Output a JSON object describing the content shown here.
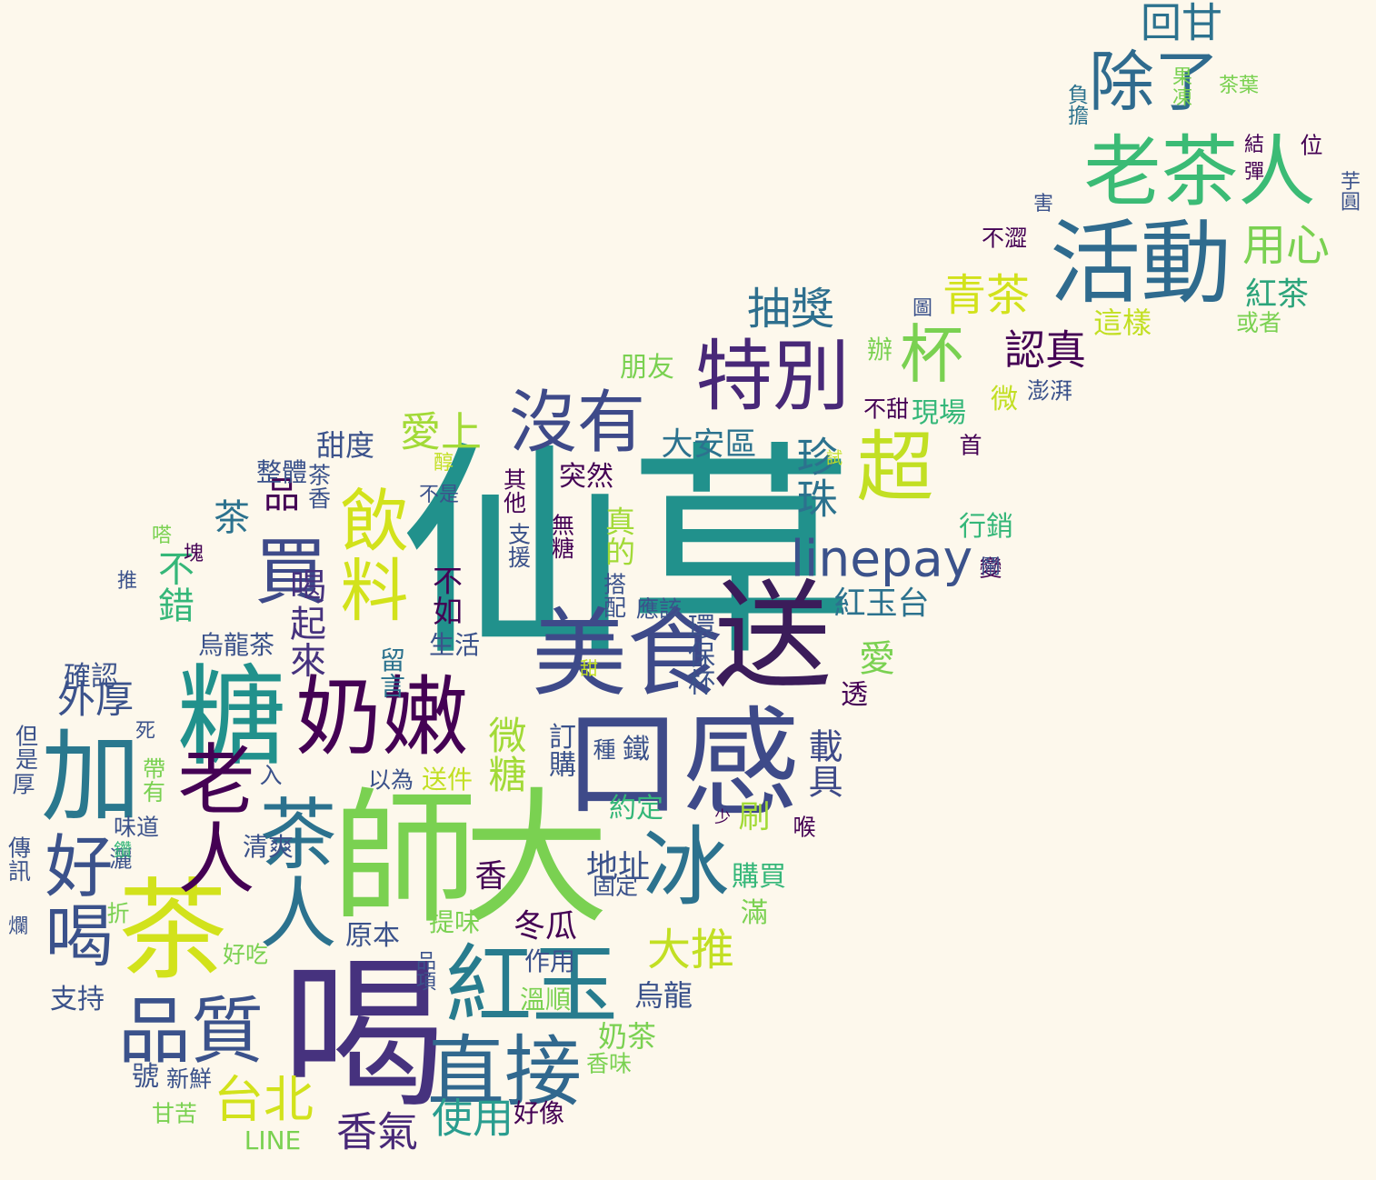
{
  "words": [
    {
      "text": "仙草",
      "color": "#21918c"
    },
    {
      "text": "喝",
      "color": "#46327e"
    },
    {
      "text": "大",
      "color": "#7ad151"
    },
    {
      "text": "師",
      "color": "#7ad151"
    },
    {
      "text": "送",
      "color": "#3b1c5a"
    },
    {
      "text": "口感",
      "color": "#3e4a89"
    },
    {
      "text": "美食",
      "color": "#3e4a89"
    },
    {
      "text": "糖",
      "color": "#21918c"
    },
    {
      "text": "奶嫩",
      "color": "#440154"
    },
    {
      "text": "加",
      "color": "#2a788e"
    },
    {
      "text": "茶",
      "color": "#d2e21b"
    },
    {
      "text": "好喝",
      "color": "#3b528b"
    },
    {
      "text": "老人",
      "color": "#440154"
    },
    {
      "text": "茶人",
      "color": "#2c728e"
    },
    {
      "text": "冰",
      "color": "#2c728e"
    },
    {
      "text": "紅玉",
      "color": "#287c8e"
    },
    {
      "text": "直接",
      "color": "#31688e"
    },
    {
      "text": "品質",
      "color": "#3b528b"
    },
    {
      "text": "特別",
      "color": "#482878"
    },
    {
      "text": "沒有",
      "color": "#3e4a89"
    },
    {
      "text": "超",
      "color": "#c2df23"
    },
    {
      "text": "杯",
      "color": "#7ad151"
    },
    {
      "text": "活動",
      "color": "#2f6b8e"
    },
    {
      "text": "老茶人",
      "color": "#3bbb75"
    },
    {
      "text": "除了",
      "color": "#2f6b8e"
    },
    {
      "text": "回甘",
      "color": "#2c728e"
    },
    {
      "text": "飲料",
      "color": "#d2e21b"
    },
    {
      "text": "買",
      "color": "#3e4a89"
    },
    {
      "text": "linepay",
      "color": "#3b528b"
    },
    {
      "text": "珍珠",
      "color": "#2c728e"
    },
    {
      "text": "愛上",
      "color": "#a2da37"
    },
    {
      "text": "抽獎",
      "color": "#2e6f8e"
    },
    {
      "text": "青茶",
      "color": "#d2e21b"
    },
    {
      "text": "用心",
      "color": "#7ad151"
    },
    {
      "text": "紅茶",
      "color": "#2ca47b"
    },
    {
      "text": "認真",
      "color": "#440154"
    },
    {
      "text": "香氣",
      "color": "#482878"
    },
    {
      "text": "台北",
      "color": "#d2e21b"
    },
    {
      "text": "使用",
      "color": "#2a9d8f"
    },
    {
      "text": "大推",
      "color": "#c2df23"
    },
    {
      "text": "微糖",
      "color": "#a2da37"
    },
    {
      "text": "喝起來",
      "color": "#46327e"
    },
    {
      "text": "品",
      "color": "#440154"
    },
    {
      "text": "茶",
      "color": "#2c728e"
    },
    {
      "text": "不錯",
      "color": "#35b779"
    },
    {
      "text": "外厚",
      "color": "#3b528b"
    },
    {
      "text": "紅玉台",
      "color": "#2c728e"
    },
    {
      "text": "載具",
      "color": "#3e4a89"
    },
    {
      "text": "愛",
      "color": "#7ad151"
    },
    {
      "text": "真的",
      "color": "#a2da37"
    },
    {
      "text": "甜度",
      "color": "#3b528b"
    },
    {
      "text": "大安區",
      "color": "#2c728e"
    },
    {
      "text": "不如",
      "color": "#440154"
    },
    {
      "text": "烏龍",
      "color": "#3b528b"
    },
    {
      "text": "奶茶",
      "color": "#7ad151"
    },
    {
      "text": "香",
      "color": "#440154"
    },
    {
      "text": "刷",
      "color": "#a2da37"
    },
    {
      "text": "地址",
      "color": "#3b528b"
    },
    {
      "text": "冬瓜",
      "color": "#440154"
    },
    {
      "text": "原本",
      "color": "#3b528b"
    },
    {
      "text": "號",
      "color": "#3b528b"
    },
    {
      "text": "LINE",
      "color": "#7ad151"
    },
    {
      "text": "支持",
      "color": "#3b528b"
    },
    {
      "text": "確認",
      "color": "#3b528b"
    },
    {
      "text": "烏龍茶",
      "color": "#3b528b"
    },
    {
      "text": "整體",
      "color": "#3b528b"
    },
    {
      "text": "茶香",
      "color": "#3b528b"
    },
    {
      "text": "突然",
      "color": "#440154"
    },
    {
      "text": "其他",
      "color": "#440154"
    },
    {
      "text": "支援",
      "color": "#3b528b"
    },
    {
      "text": "無糖",
      "color": "#440154"
    },
    {
      "text": "行銷",
      "color": "#35b779"
    },
    {
      "text": "首",
      "color": "#440154"
    },
    {
      "text": "現場",
      "color": "#35b779"
    },
    {
      "text": "朋友",
      "color": "#7ad151"
    },
    {
      "text": "環保杯",
      "color": "#3b528b"
    },
    {
      "text": "應該",
      "color": "#3b528b"
    },
    {
      "text": "搭配",
      "color": "#3b528b"
    },
    {
      "text": "鐵",
      "color": "#3b528b"
    },
    {
      "text": "種",
      "color": "#3b528b"
    },
    {
      "text": "訂購",
      "color": "#3b528b"
    },
    {
      "text": "約定",
      "color": "#35b779"
    },
    {
      "text": "購買",
      "color": "#35b779"
    },
    {
      "text": "滿",
      "color": "#7ad151"
    },
    {
      "text": "固定",
      "color": "#3b528b"
    },
    {
      "text": "透",
      "color": "#440154"
    },
    {
      "text": "這樣",
      "color": "#c2df23"
    },
    {
      "text": "或者",
      "color": "#7ad151"
    },
    {
      "text": "澎湃",
      "color": "#3b528b"
    },
    {
      "text": "不甜",
      "color": "#440154"
    },
    {
      "text": "辦",
      "color": "#7ad151"
    },
    {
      "text": "微",
      "color": "#c2df23"
    },
    {
      "text": "不澀",
      "color": "#440154"
    },
    {
      "text": "圖",
      "color": "#3b528b"
    },
    {
      "text": "害",
      "color": "#3b528b"
    },
    {
      "text": "結",
      "color": "#440154"
    },
    {
      "text": "彈",
      "color": "#440154"
    },
    {
      "text": "位",
      "color": "#440154"
    },
    {
      "text": "芋圓",
      "color": "#3b528b"
    },
    {
      "text": "負擔",
      "color": "#2c728e"
    },
    {
      "text": "果凍",
      "color": "#7ad151"
    },
    {
      "text": "茶葉",
      "color": "#7ad151"
    },
    {
      "text": "變",
      "color": "#440154"
    },
    {
      "text": "生活",
      "color": "#3b528b"
    },
    {
      "text": "留言",
      "color": "#2c728e"
    },
    {
      "text": "送件",
      "color": "#c2df23"
    },
    {
      "text": "以為",
      "color": "#3b528b"
    },
    {
      "text": "入",
      "color": "#3b528b"
    },
    {
      "text": "清爽",
      "color": "#3b528b"
    },
    {
      "text": "提味",
      "color": "#7ad151"
    },
    {
      "text": "作用",
      "color": "#3b528b"
    },
    {
      "text": "溫順",
      "color": "#7ad151"
    },
    {
      "text": "好像",
      "color": "#440154"
    },
    {
      "text": "香味",
      "color": "#7ad151"
    },
    {
      "text": "新鮮",
      "color": "#3b528b"
    },
    {
      "text": "甘苦",
      "color": "#7ad151"
    },
    {
      "text": "品項",
      "color": "#3b528b"
    },
    {
      "text": "好吃",
      "color": "#7ad151"
    },
    {
      "text": "折",
      "color": "#7ad151"
    },
    {
      "text": "灑",
      "color": "#3b528b"
    },
    {
      "text": "傳訊",
      "color": "#3b528b"
    },
    {
      "text": "味道",
      "color": "#3b528b"
    },
    {
      "text": "帶有",
      "color": "#7ad151"
    },
    {
      "text": "厚",
      "color": "#3b528b"
    },
    {
      "text": "但是",
      "color": "#3b528b"
    },
    {
      "text": "死",
      "color": "#3b528b"
    },
    {
      "text": "推",
      "color": "#3b528b"
    },
    {
      "text": "塊",
      "color": "#440154"
    },
    {
      "text": "嗒",
      "color": "#7ad151"
    },
    {
      "text": "醇",
      "color": "#c2df23"
    },
    {
      "text": "不是",
      "color": "#3b528b"
    },
    {
      "text": "甜",
      "color": "#c2df23"
    },
    {
      "text": "少",
      "color": "#440154"
    },
    {
      "text": "喉",
      "color": "#440154"
    },
    {
      "text": "試",
      "color": "#c2df23"
    },
    {
      "text": "鬧",
      "color": "#3b528b"
    },
    {
      "text": "爛",
      "color": "#3b528b"
    },
    {
      "text": "鑽",
      "color": "#35b779"
    }
  ]
}
